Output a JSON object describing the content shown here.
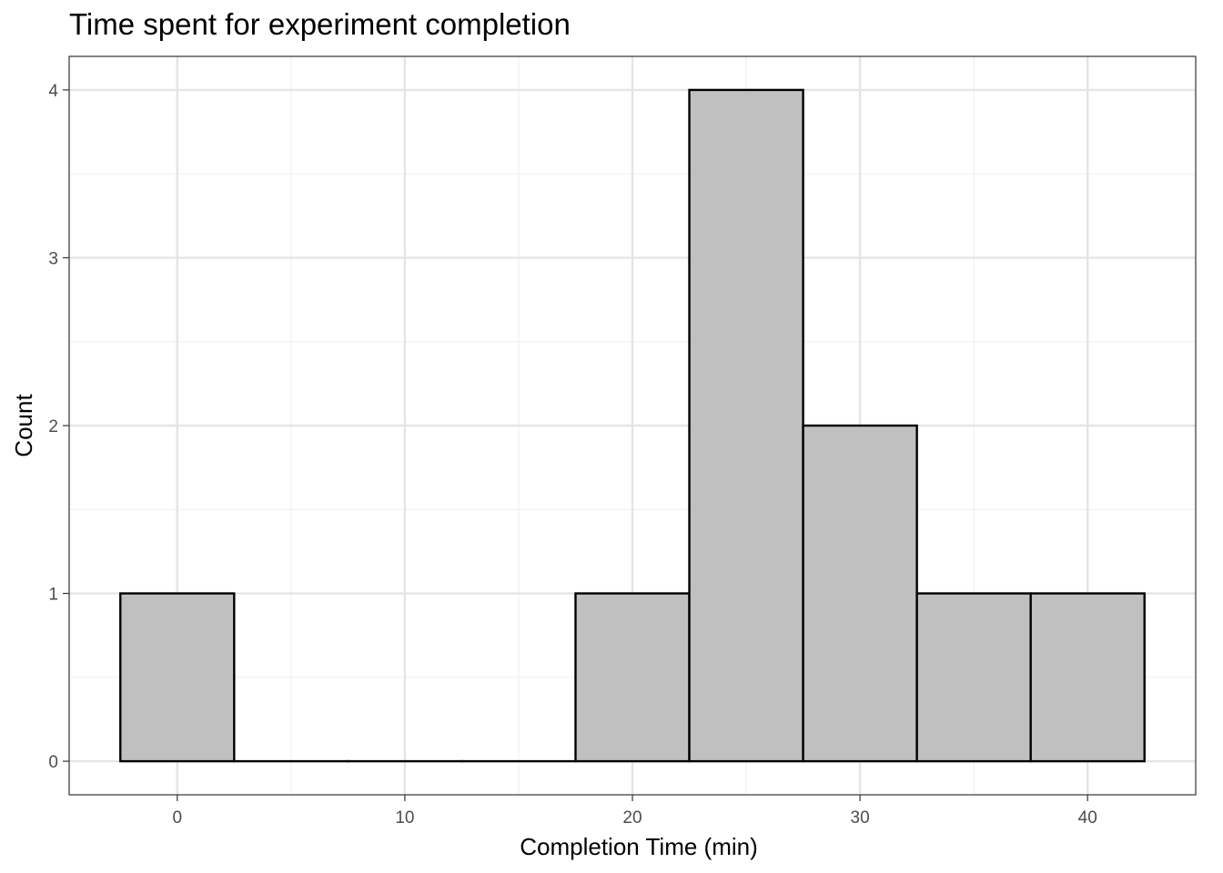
{
  "chart_data": {
    "type": "bar",
    "subtype": "histogram",
    "title": "Time spent for experiment completion",
    "xlabel": "Completion Time (min)",
    "ylabel": "Count",
    "bin_width": 5,
    "bins": [
      {
        "x_start": -2.5,
        "x_end": 2.5,
        "count": 1
      },
      {
        "x_start": 2.5,
        "x_end": 7.5,
        "count": 0
      },
      {
        "x_start": 7.5,
        "x_end": 12.5,
        "count": 0
      },
      {
        "x_start": 12.5,
        "x_end": 17.5,
        "count": 0
      },
      {
        "x_start": 17.5,
        "x_end": 22.5,
        "count": 1
      },
      {
        "x_start": 22.5,
        "x_end": 27.5,
        "count": 4
      },
      {
        "x_start": 27.5,
        "x_end": 32.5,
        "count": 2
      },
      {
        "x_start": 32.5,
        "x_end": 37.5,
        "count": 1
      },
      {
        "x_start": 37.5,
        "x_end": 42.5,
        "count": 1
      }
    ],
    "xlim": [
      -4.75,
      44.75
    ],
    "ylim": [
      -0.2,
      4.2
    ],
    "x_ticks": [
      0,
      10,
      20,
      30,
      40
    ],
    "y_ticks": [
      0,
      1,
      2,
      3,
      4
    ],
    "grid": true,
    "legend": "none",
    "colors": {
      "bar_fill": "#c0c0c0",
      "bar_stroke": "#000000",
      "grid_major": "#e5e5e5",
      "grid_minor": "#f0f0f0"
    }
  }
}
